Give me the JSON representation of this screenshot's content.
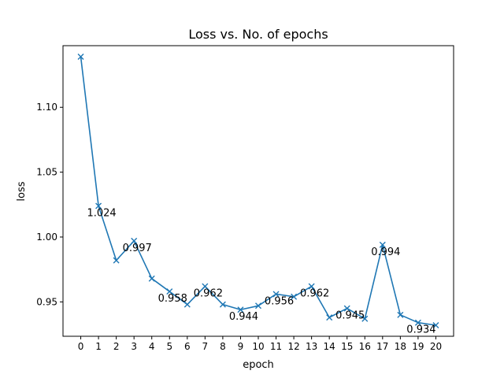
{
  "chart_data": {
    "type": "line",
    "title": "Loss vs. No. of epochs",
    "xlabel": "epoch",
    "ylabel": "loss",
    "x": [
      0,
      1,
      2,
      3,
      4,
      5,
      6,
      7,
      8,
      9,
      10,
      11,
      12,
      13,
      14,
      15,
      16,
      17,
      18,
      19,
      20
    ],
    "series": [
      {
        "values": [
          1.139,
          1.024,
          0.982,
          0.997,
          0.968,
          0.958,
          0.948,
          0.962,
          0.948,
          0.944,
          0.947,
          0.956,
          0.954,
          0.962,
          0.938,
          0.945,
          0.937,
          0.994,
          0.94,
          0.934,
          0.932
        ],
        "color": "#1f77b4",
        "marker": "x"
      }
    ],
    "annotations": [
      {
        "x": 1,
        "y": 1.024,
        "text": "1.024"
      },
      {
        "x": 3,
        "y": 0.997,
        "text": "0.997"
      },
      {
        "x": 5,
        "y": 0.958,
        "text": "0.958"
      },
      {
        "x": 7,
        "y": 0.962,
        "text": "0.962"
      },
      {
        "x": 9,
        "y": 0.944,
        "text": "0.944"
      },
      {
        "x": 11,
        "y": 0.956,
        "text": "0.956"
      },
      {
        "x": 13,
        "y": 0.962,
        "text": "0.962"
      },
      {
        "x": 15,
        "y": 0.945,
        "text": "0.945"
      },
      {
        "x": 17,
        "y": 0.994,
        "text": "0.994"
      },
      {
        "x": 19,
        "y": 0.934,
        "text": "0.934"
      }
    ],
    "xticks": [
      "0",
      "1",
      "2",
      "3",
      "4",
      "5",
      "6",
      "7",
      "8",
      "9",
      "10",
      "11",
      "12",
      "13",
      "14",
      "15",
      "16",
      "17",
      "18",
      "19",
      "20"
    ],
    "yticks": [
      0.95,
      1.0,
      1.05,
      1.1
    ],
    "ytick_labels": [
      "0.95",
      "1.00",
      "1.05",
      "1.10"
    ],
    "xlim": [
      -1,
      21
    ],
    "ylim": [
      0.9235,
      1.1475
    ],
    "grid": false
  }
}
